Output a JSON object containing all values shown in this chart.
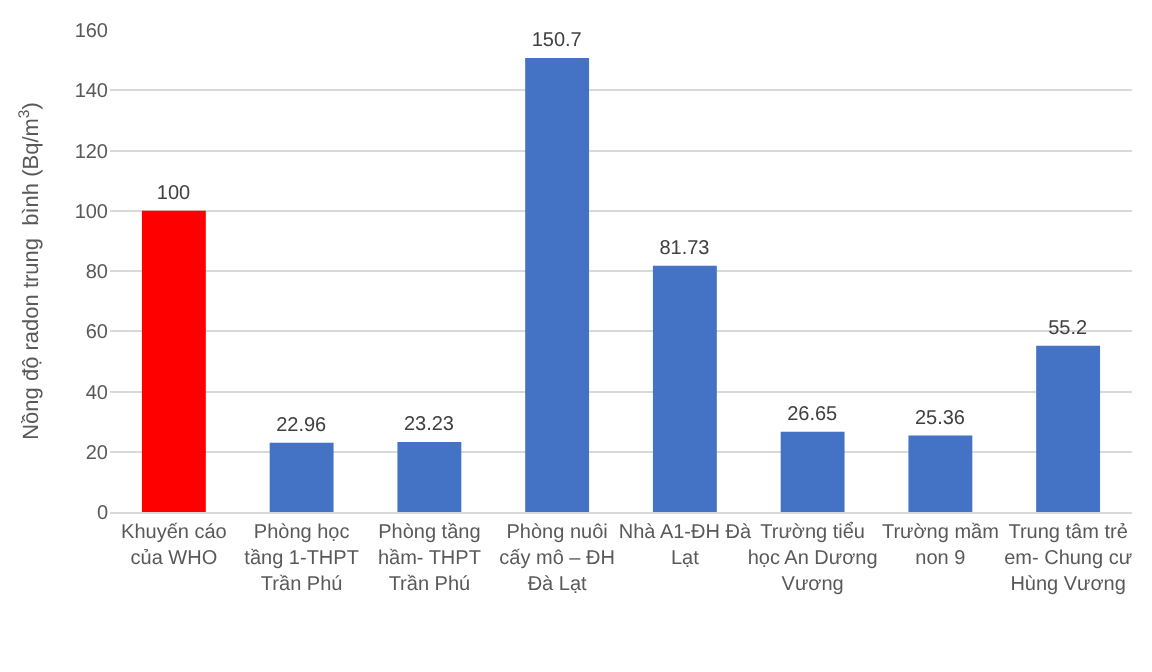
{
  "chart_data": {
    "type": "bar",
    "ylabel": "Nồng độ radon trung  bình (Bq/m$^{3}$)",
    "categories": [
      "Khuyến cáo của WHO",
      "Phòng học tầng 1-THPT Trần Phú",
      "Phòng tầng hầm- THPT Trần Phú",
      "Phòng nuôi cấy mô – ĐH Đà Lạt",
      "Nhà A1-ĐH Đà Lạt",
      "Trường tiểu học An Dương Vương",
      "Trường mầm non 9",
      "Trung tâm trẻ em- Chung cư Hùng Vương"
    ],
    "values": [
      100,
      22.96,
      23.23,
      150.7,
      81.73,
      26.65,
      25.36,
      55.2
    ],
    "colors": [
      "#ff0000",
      "#4472c4",
      "#4472c4",
      "#4472c4",
      "#4472c4",
      "#4472c4",
      "#4472c4",
      "#4472c4"
    ],
    "data_labels": true,
    "ylim": [
      0,
      160
    ],
    "yticks": [
      0,
      20,
      40,
      60,
      80,
      100,
      120,
      140,
      160
    ],
    "grid": "y"
  }
}
